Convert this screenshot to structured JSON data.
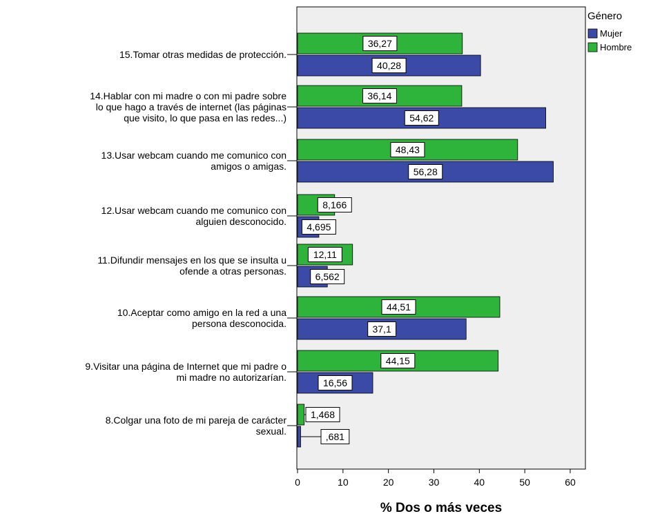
{
  "chart_data": {
    "type": "bar",
    "orientation": "horizontal",
    "xlabel": "% Dos o más veces",
    "xlim": [
      0,
      60
    ],
    "xticks": [
      0,
      10,
      20,
      30,
      40,
      50,
      60
    ],
    "categories": [
      "15.Tomar otras medidas de protección.",
      "14.Hablar con mi madre o con mi padre sobre lo que hago a través de internet (las páginas que visito, lo que pasa en las redes...)",
      "13.Usar webcam cuando me comunico con amigos o amigas.",
      "12.Usar webcam cuando me comunico con alguien desconocido.",
      "11.Difundir mensajes en los que se insulta u ofende a otras personas.",
      "10.Aceptar como amigo en la red a una persona desconocida.",
      "9.Visitar una página de Internet que mi padre o mi madre no autorizarían.",
      "8.Colgar una foto de mi pareja de carácter sexual."
    ],
    "category_lines": [
      [
        "15.Tomar otras medidas de protección."
      ],
      [
        "14.Hablar con mi madre o con mi padre sobre",
        "lo que hago a través de internet (las páginas",
        "que visito, lo que pasa en las redes...)"
      ],
      [
        "13.Usar webcam cuando me comunico con",
        "amigos o amigas."
      ],
      [
        "12.Usar webcam cuando me comunico con",
        "alguien desconocido."
      ],
      [
        "11.Difundir mensajes en los que se insulta u",
        "ofende a otras personas."
      ],
      [
        "10.Aceptar como amigo en la red a una",
        "persona desconocida."
      ],
      [
        "9.Visitar una página de Internet que mi padre o",
        "mi madre no autorizarían."
      ],
      [
        "8.Colgar una foto de mi pareja de carácter",
        "sexual."
      ]
    ],
    "series": [
      {
        "name": "Hombre",
        "color": "#2eb33b",
        "values": [
          36.27,
          36.14,
          48.43,
          8.166,
          12.11,
          44.51,
          44.15,
          1.468
        ],
        "labels": [
          "36,27",
          "36,14",
          "48,43",
          "8,166",
          "12,11",
          "44,51",
          "44,15",
          "1,468"
        ]
      },
      {
        "name": "Mujer",
        "color": "#3a4aa6",
        "values": [
          40.28,
          54.62,
          56.28,
          4.695,
          6.562,
          37.1,
          16.56,
          0.681
        ],
        "labels": [
          "40,28",
          "54,62",
          "56,28",
          "4,695",
          "6,562",
          "37,1",
          "16,56",
          ",681"
        ]
      }
    ],
    "legend": {
      "title": "Género",
      "position": "top-right",
      "entries": [
        "Mujer",
        "Hombre"
      ]
    },
    "plot_background": "#efefef",
    "grid": false
  }
}
